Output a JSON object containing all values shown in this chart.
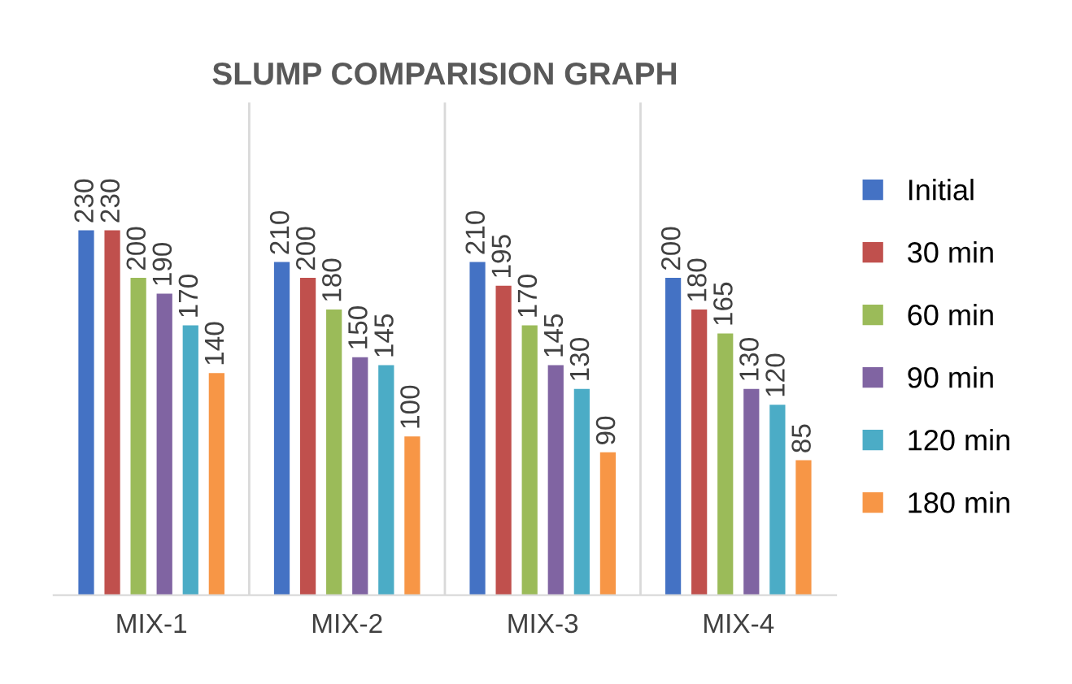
{
  "chart_data": {
    "type": "bar",
    "title": "SLUMP COMPARISION GRAPH",
    "categories": [
      "MIX-1",
      "MIX-2",
      "MIX-3",
      "MIX-4"
    ],
    "series": [
      {
        "name": "Initial",
        "color": "#4472c4",
        "values": [
          230,
          210,
          210,
          200
        ]
      },
      {
        "name": "30 min",
        "color": "#c0504d",
        "values": [
          230,
          200,
          195,
          180
        ]
      },
      {
        "name": "60 min",
        "color": "#9bbb59",
        "values": [
          200,
          180,
          170,
          165
        ]
      },
      {
        "name": "90 min",
        "color": "#8064a2",
        "values": [
          190,
          150,
          145,
          130
        ]
      },
      {
        "name": "120 min",
        "color": "#4bacc6",
        "values": [
          170,
          145,
          130,
          120
        ]
      },
      {
        "name": "180 min",
        "color": "#f79646",
        "values": [
          140,
          100,
          90,
          85
        ]
      }
    ],
    "data_labels": true,
    "legend": "right",
    "grid": false
  }
}
